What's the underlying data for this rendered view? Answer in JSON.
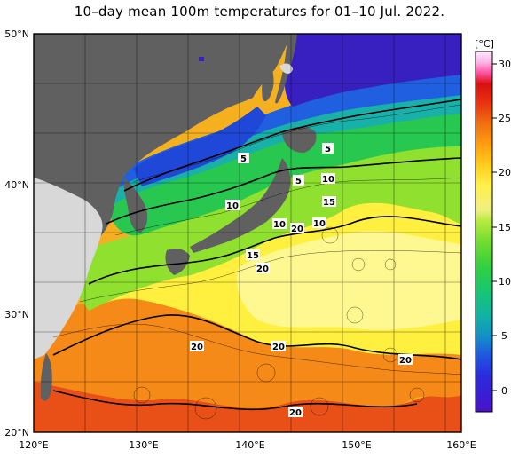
{
  "title": "10–day mean 100m temperatures for 01–10 Jul. 2022.",
  "map": {
    "lon_labels": [
      "120°E",
      "130°E",
      "140°E",
      "150°E",
      "160°E"
    ],
    "lat_labels": [
      "50°N",
      "40°N",
      "30°N",
      "20°N"
    ],
    "contour_labels": [
      "5",
      "5",
      "5",
      "10",
      "10",
      "10",
      "10",
      "15",
      "15",
      "20",
      "20",
      "20",
      "20",
      "20",
      "20"
    ],
    "land_color": "#606060",
    "land_light_color": "#d8d8d8",
    "grid_color": "#000000"
  },
  "colorbar": {
    "unit": "[°C]",
    "ticks": [
      "30",
      "25",
      "20",
      "15",
      "10",
      "5",
      "0"
    ],
    "min": -2,
    "max": 31,
    "colors": [
      "#4a12c8",
      "#2a2cdc",
      "#1f5ae0",
      "#1390c8",
      "#12b4a0",
      "#18c476",
      "#30d040",
      "#70dc30",
      "#b8ea40",
      "#f0f080",
      "#fff04a",
      "#ffd020",
      "#ffa010",
      "#f07010",
      "#e83010",
      "#d81010",
      "#ff50a0",
      "#ffb4e6",
      "#ffe8ff"
    ]
  }
}
